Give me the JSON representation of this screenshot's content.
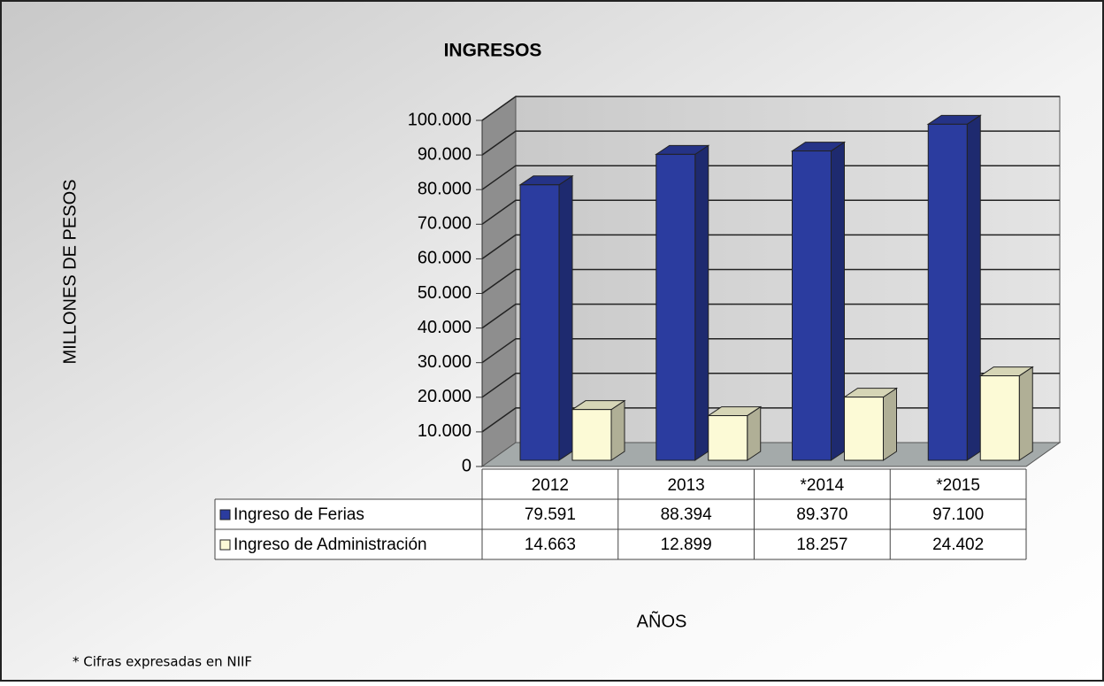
{
  "chart_data": {
    "type": "bar3d",
    "title": "INGRESOS",
    "y_label": "MILLONES DE PESOS",
    "x_label": "AÑOS",
    "footnote": "* Cifras expresadas en NIIF",
    "categories": [
      "2012",
      "2013",
      "*2014",
      "*2015"
    ],
    "series": [
      {
        "name": "Ingreso de Ferias",
        "color": "#2b3c9f",
        "values": [
          79591,
          88394,
          89370,
          97100
        ],
        "value_labels": [
          "79.591",
          "88.394",
          "89.370",
          "97.100"
        ]
      },
      {
        "name": "Ingreso de Administración",
        "color": "#fcfad6",
        "values": [
          14663,
          12899,
          18257,
          24402
        ],
        "value_labels": [
          "14.663",
          "12.899",
          "18.257",
          "24.402"
        ]
      }
    ],
    "ylim": [
      0,
      100000
    ],
    "yticks": [
      0,
      {
        "value": 10000,
        "label": "10.000"
      },
      {
        "value": 20000,
        "label": "20.000"
      },
      {
        "value": 30000,
        "label": "30.000"
      },
      {
        "value": 40000,
        "label": "40.000"
      },
      {
        "value": 50000,
        "label": "50.000"
      },
      {
        "value": 60000,
        "label": "60.000"
      },
      {
        "value": 70000,
        "label": "70.000"
      },
      {
        "value": 80000,
        "label": "80.000"
      },
      {
        "value": 90000,
        "label": "90.000"
      },
      {
        "value": 100000,
        "label": "100.000"
      }
    ],
    "grid": true,
    "data_table": true
  }
}
